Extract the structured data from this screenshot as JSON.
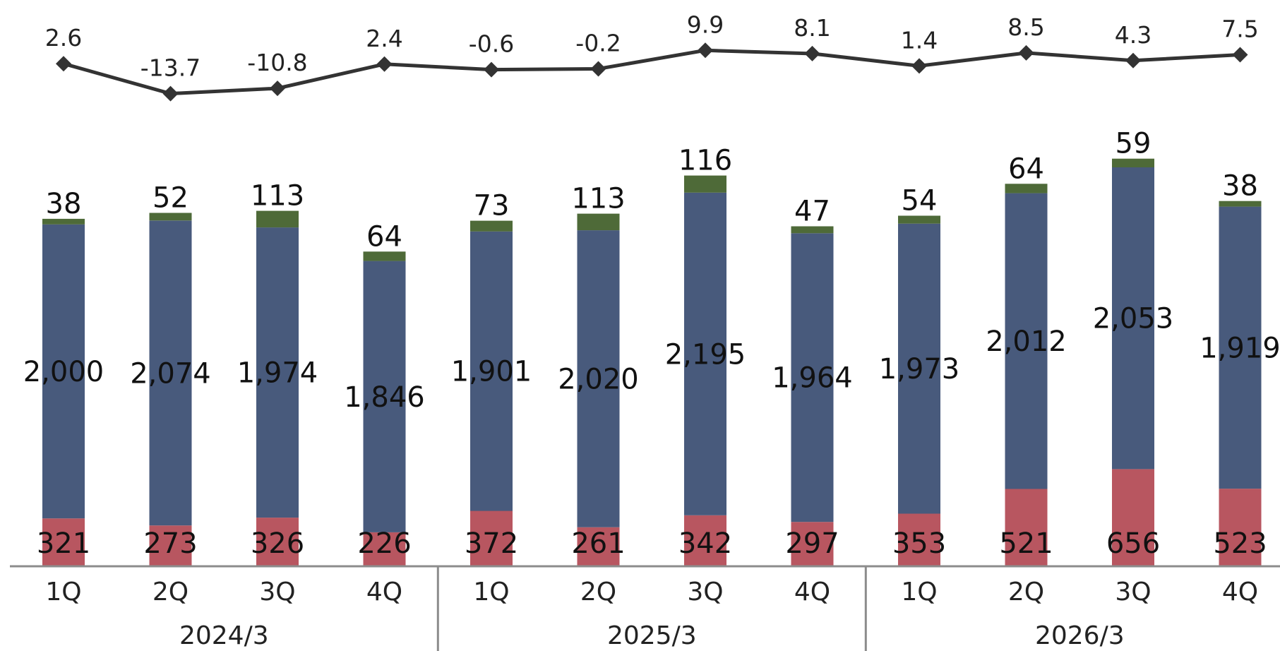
{
  "chart_data": {
    "type": "bar",
    "stacked": true,
    "title": "",
    "xlabel": "",
    "ylabel": "",
    "categories": [
      "1Q",
      "2Q",
      "3Q",
      "4Q",
      "1Q",
      "2Q",
      "3Q",
      "4Q",
      "1Q",
      "2Q",
      "3Q",
      "4Q"
    ],
    "groups": [
      {
        "label": "2024/3",
        "start": 0,
        "end": 3
      },
      {
        "label": "2025/3",
        "start": 4,
        "end": 7
      },
      {
        "label": "2026/3",
        "start": 8,
        "end": 11
      }
    ],
    "series": [
      {
        "color": "#B85660",
        "values": [
          321,
          273,
          326,
          226,
          372,
          261,
          342,
          297,
          353,
          521,
          656,
          523
        ]
      },
      {
        "color": "#485A7C",
        "values": [
          2000,
          2074,
          1974,
          1846,
          1901,
          2020,
          2195,
          1964,
          1973,
          2012,
          2053,
          1919
        ]
      },
      {
        "color": "#4E6A38",
        "values": [
          38,
          52,
          113,
          64,
          73,
          113,
          116,
          47,
          54,
          64,
          59,
          38
        ]
      }
    ],
    "series_labels": [
      [
        "321",
        "273",
        "326",
        "226",
        "372",
        "261",
        "342",
        "297",
        "353",
        "521",
        "656",
        "523"
      ],
      [
        "2,000",
        "2,074",
        "1,974",
        "1,846",
        "1,901",
        "2,020",
        "2,195",
        "1,964",
        "1,973",
        "2,012",
        "2,053",
        "1,919"
      ],
      [
        "38",
        "52",
        "113",
        "64",
        "73",
        "113",
        "116",
        "47",
        "54",
        "64",
        "59",
        "38"
      ]
    ],
    "line": {
      "color": "#333333",
      "marker": "diamond",
      "values": [
        2.6,
        -13.7,
        -10.8,
        2.4,
        -0.6,
        -0.2,
        9.9,
        8.1,
        1.4,
        8.5,
        4.3,
        7.5
      ],
      "labels": [
        "2.6",
        "-13.7",
        "-10.8",
        "2.4",
        "-0.6",
        "-0.2",
        "9.9",
        "8.1",
        "1.4",
        "8.5",
        "4.3",
        "7.5"
      ]
    },
    "grid": false,
    "legend": "none"
  }
}
